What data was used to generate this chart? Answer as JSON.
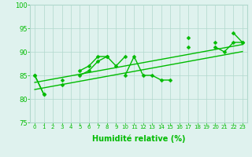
{
  "xlabel": "Humidité relative (%)",
  "x_values": [
    0,
    1,
    2,
    3,
    4,
    5,
    6,
    7,
    8,
    9,
    10,
    11,
    12,
    13,
    14,
    15,
    16,
    17,
    18,
    19,
    20,
    21,
    22,
    23
  ],
  "line1": [
    85,
    81,
    null,
    83,
    null,
    85,
    86,
    88,
    89,
    null,
    85,
    89,
    85,
    85,
    84,
    84,
    null,
    91,
    null,
    null,
    91,
    90,
    92,
    92
  ],
  "line2": [
    85,
    81,
    null,
    84,
    null,
    86,
    87,
    89,
    89,
    87,
    89,
    null,
    null,
    null,
    null,
    null,
    null,
    93,
    null,
    null,
    92,
    null,
    94,
    92
  ],
  "line_reg1": [
    82.0,
    82.35,
    82.7,
    83.05,
    83.4,
    83.75,
    84.1,
    84.45,
    84.8,
    85.15,
    85.5,
    85.85,
    86.2,
    86.55,
    86.9,
    87.25,
    87.6,
    87.95,
    88.3,
    88.65,
    89.0,
    89.35,
    89.7,
    90.05
  ],
  "line_reg2": [
    83.5,
    83.85,
    84.2,
    84.55,
    84.9,
    85.25,
    85.6,
    85.95,
    86.3,
    86.65,
    87.0,
    87.35,
    87.7,
    88.05,
    88.4,
    88.75,
    89.1,
    89.45,
    89.8,
    90.15,
    90.5,
    90.85,
    91.2,
    91.55
  ],
  "ylim": [
    75,
    100
  ],
  "yticks": [
    75,
    80,
    85,
    90,
    95,
    100
  ],
  "xlim": [
    -0.5,
    23.5
  ],
  "bg_color": "#dff2ee",
  "grid_color": "#b0d8cc",
  "line_color": "#00bb00",
  "line_width": 1.0,
  "marker": "D",
  "marker_size": 2.5,
  "xlabel_fontsize": 7,
  "xtick_fontsize": 5,
  "ytick_fontsize": 6
}
